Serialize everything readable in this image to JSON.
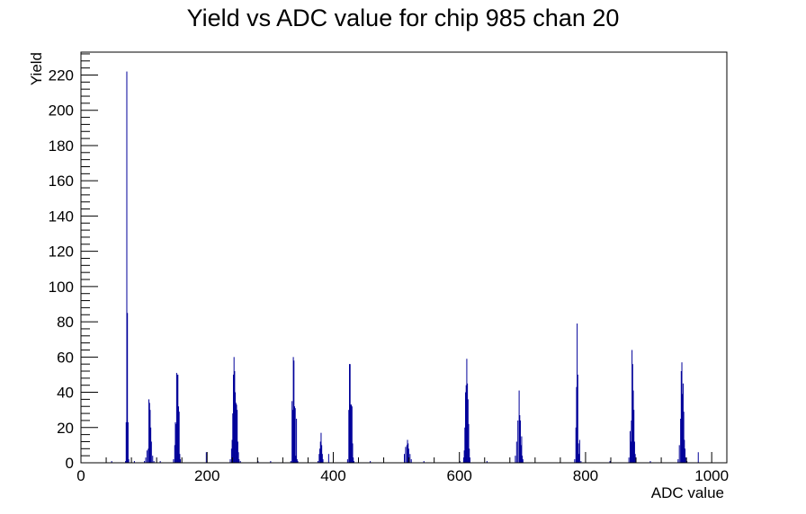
{
  "chart_data": {
    "type": "bar",
    "title": "Yield vs ADC value for chip 985 chan 20",
    "xlabel": "ADC value",
    "ylabel": "Yield",
    "xlim": [
      0,
      1024
    ],
    "ylim": [
      0,
      233
    ],
    "x_ticks": [
      0,
      200,
      400,
      600,
      800,
      1000
    ],
    "y_ticks": [
      0,
      20,
      40,
      60,
      80,
      100,
      120,
      140,
      160,
      180,
      200,
      220
    ],
    "colors": {
      "histogram": "#000099",
      "frame": "#000000"
    },
    "bins": [
      {
        "x": 48,
        "y": 1
      },
      {
        "x": 70,
        "y": 1
      },
      {
        "x": 71,
        "y": 23
      },
      {
        "x": 72,
        "y": 222
      },
      {
        "x": 73,
        "y": 85
      },
      {
        "x": 74,
        "y": 23
      },
      {
        "x": 75,
        "y": 2
      },
      {
        "x": 84,
        "y": 1
      },
      {
        "x": 100,
        "y": 1
      },
      {
        "x": 102,
        "y": 3
      },
      {
        "x": 104,
        "y": 7
      },
      {
        "x": 106,
        "y": 8
      },
      {
        "x": 107,
        "y": 36
      },
      {
        "x": 108,
        "y": 34
      },
      {
        "x": 109,
        "y": 30
      },
      {
        "x": 110,
        "y": 20
      },
      {
        "x": 111,
        "y": 12
      },
      {
        "x": 113,
        "y": 4
      },
      {
        "x": 115,
        "y": 1
      },
      {
        "x": 125,
        "y": 1
      },
      {
        "x": 146,
        "y": 2
      },
      {
        "x": 148,
        "y": 10
      },
      {
        "x": 149,
        "y": 23
      },
      {
        "x": 150,
        "y": 22
      },
      {
        "x": 151,
        "y": 51
      },
      {
        "x": 152,
        "y": 50
      },
      {
        "x": 153,
        "y": 50
      },
      {
        "x": 154,
        "y": 32
      },
      {
        "x": 155,
        "y": 29
      },
      {
        "x": 156,
        "y": 5
      },
      {
        "x": 157,
        "y": 2
      },
      {
        "x": 198,
        "y": 6
      },
      {
        "x": 236,
        "y": 2
      },
      {
        "x": 238,
        "y": 8
      },
      {
        "x": 239,
        "y": 13
      },
      {
        "x": 240,
        "y": 28
      },
      {
        "x": 241,
        "y": 50
      },
      {
        "x": 242,
        "y": 60
      },
      {
        "x": 243,
        "y": 52
      },
      {
        "x": 244,
        "y": 40
      },
      {
        "x": 245,
        "y": 34
      },
      {
        "x": 246,
        "y": 33
      },
      {
        "x": 247,
        "y": 30
      },
      {
        "x": 248,
        "y": 12
      },
      {
        "x": 249,
        "y": 6
      },
      {
        "x": 250,
        "y": 2
      },
      {
        "x": 252,
        "y": 1
      },
      {
        "x": 280,
        "y": 1
      },
      {
        "x": 300,
        "y": 1
      },
      {
        "x": 332,
        "y": 1
      },
      {
        "x": 334,
        "y": 35
      },
      {
        "x": 335,
        "y": 30
      },
      {
        "x": 336,
        "y": 60
      },
      {
        "x": 337,
        "y": 58
      },
      {
        "x": 338,
        "y": 32
      },
      {
        "x": 339,
        "y": 31
      },
      {
        "x": 340,
        "y": 4
      },
      {
        "x": 341,
        "y": 25
      },
      {
        "x": 342,
        "y": 2
      },
      {
        "x": 343,
        "y": 1
      },
      {
        "x": 375,
        "y": 1
      },
      {
        "x": 377,
        "y": 5
      },
      {
        "x": 378,
        "y": 8
      },
      {
        "x": 379,
        "y": 12
      },
      {
        "x": 380,
        "y": 17
      },
      {
        "x": 381,
        "y": 10
      },
      {
        "x": 382,
        "y": 5
      },
      {
        "x": 383,
        "y": 2
      },
      {
        "x": 392,
        "y": 5
      },
      {
        "x": 422,
        "y": 2
      },
      {
        "x": 424,
        "y": 30
      },
      {
        "x": 425,
        "y": 56
      },
      {
        "x": 426,
        "y": 56
      },
      {
        "x": 427,
        "y": 33
      },
      {
        "x": 428,
        "y": 33
      },
      {
        "x": 429,
        "y": 32
      },
      {
        "x": 430,
        "y": 11
      },
      {
        "x": 431,
        "y": 3
      },
      {
        "x": 432,
        "y": 1
      },
      {
        "x": 458,
        "y": 1
      },
      {
        "x": 512,
        "y": 5
      },
      {
        "x": 514,
        "y": 9
      },
      {
        "x": 516,
        "y": 10
      },
      {
        "x": 517,
        "y": 13
      },
      {
        "x": 518,
        "y": 11
      },
      {
        "x": 519,
        "y": 8
      },
      {
        "x": 521,
        "y": 5
      },
      {
        "x": 523,
        "y": 2
      },
      {
        "x": 543,
        "y": 1
      },
      {
        "x": 600,
        "y": 1
      },
      {
        "x": 606,
        "y": 3
      },
      {
        "x": 607,
        "y": 7
      },
      {
        "x": 608,
        "y": 20
      },
      {
        "x": 609,
        "y": 40
      },
      {
        "x": 610,
        "y": 44
      },
      {
        "x": 611,
        "y": 59
      },
      {
        "x": 612,
        "y": 45
      },
      {
        "x": 613,
        "y": 36
      },
      {
        "x": 614,
        "y": 22
      },
      {
        "x": 615,
        "y": 8
      },
      {
        "x": 616,
        "y": 3
      },
      {
        "x": 643,
        "y": 1
      },
      {
        "x": 688,
        "y": 4
      },
      {
        "x": 690,
        "y": 12
      },
      {
        "x": 692,
        "y": 24
      },
      {
        "x": 694,
        "y": 41
      },
      {
        "x": 695,
        "y": 27
      },
      {
        "x": 696,
        "y": 24
      },
      {
        "x": 697,
        "y": 10
      },
      {
        "x": 698,
        "y": 15
      },
      {
        "x": 699,
        "y": 4
      },
      {
        "x": 700,
        "y": 2
      },
      {
        "x": 782,
        "y": 2
      },
      {
        "x": 784,
        "y": 20
      },
      {
        "x": 785,
        "y": 43
      },
      {
        "x": 786,
        "y": 79
      },
      {
        "x": 787,
        "y": 50
      },
      {
        "x": 788,
        "y": 11
      },
      {
        "x": 789,
        "y": 5
      },
      {
        "x": 790,
        "y": 13
      },
      {
        "x": 792,
        "y": 1
      },
      {
        "x": 838,
        "y": 1
      },
      {
        "x": 868,
        "y": 3
      },
      {
        "x": 870,
        "y": 18
      },
      {
        "x": 871,
        "y": 12
      },
      {
        "x": 872,
        "y": 24
      },
      {
        "x": 873,
        "y": 64
      },
      {
        "x": 874,
        "y": 56
      },
      {
        "x": 875,
        "y": 41
      },
      {
        "x": 876,
        "y": 30
      },
      {
        "x": 877,
        "y": 12
      },
      {
        "x": 878,
        "y": 5
      },
      {
        "x": 879,
        "y": 2
      },
      {
        "x": 902,
        "y": 1
      },
      {
        "x": 946,
        "y": 2
      },
      {
        "x": 948,
        "y": 10
      },
      {
        "x": 950,
        "y": 25
      },
      {
        "x": 951,
        "y": 52
      },
      {
        "x": 952,
        "y": 57
      },
      {
        "x": 953,
        "y": 39
      },
      {
        "x": 954,
        "y": 45
      },
      {
        "x": 955,
        "y": 29
      },
      {
        "x": 956,
        "y": 13
      },
      {
        "x": 957,
        "y": 8
      },
      {
        "x": 958,
        "y": 3
      },
      {
        "x": 960,
        "y": 1
      },
      {
        "x": 978,
        "y": 6
      }
    ]
  }
}
